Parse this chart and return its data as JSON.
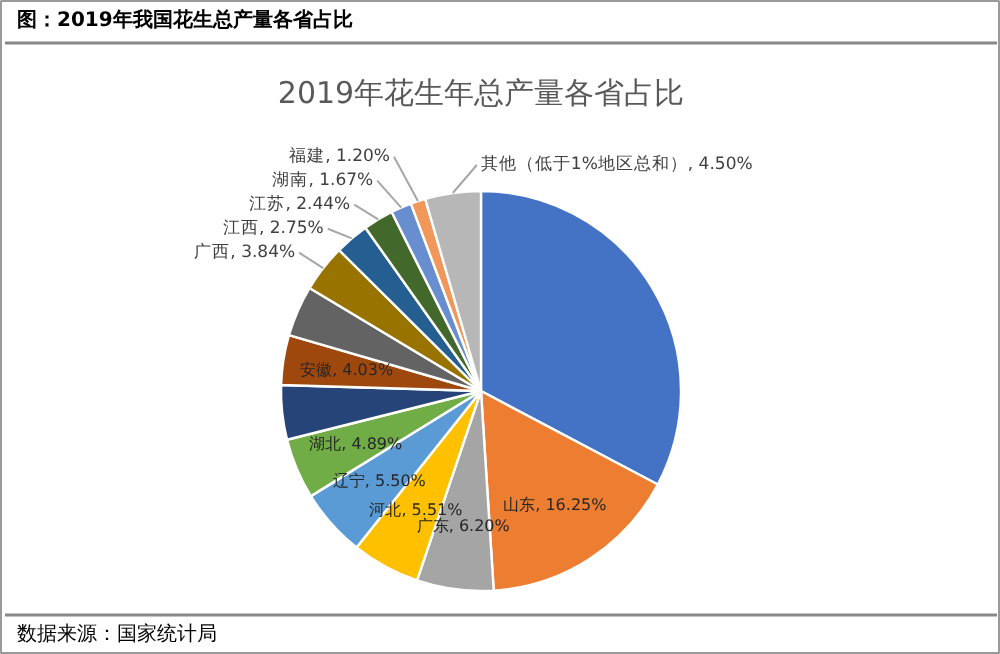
{
  "chart_data": {
    "type": "pie",
    "title": "图：2019年我国花生总产量各省占比",
    "subtitle": "2019年花生年总产量各省占比",
    "categories": [
      null,
      "山东",
      "广东",
      "河北",
      "辽宁",
      "湖北",
      null,
      "安徽",
      null,
      "广西",
      "江西",
      "江苏",
      "湖南",
      "福建",
      "其他（低于1%地区总和）"
    ],
    "values": [
      32.75,
      16.25,
      6.2,
      5.51,
      5.5,
      4.89,
      4.4,
      4.03,
      4.1,
      3.84,
      2.75,
      2.44,
      1.67,
      1.2,
      4.5
    ],
    "colors": [
      "#4472c4",
      "#ed7d31",
      "#a5a5a5",
      "#ffc000",
      "#5b9bd5",
      "#70ad47",
      "#264478",
      "#9e480e",
      "#636363",
      "#997300",
      "#255e91",
      "#43682b",
      "#698ed0",
      "#f1975a",
      "#b7b7b7"
    ],
    "value_labels": [
      null,
      "16.25%",
      "6.20%",
      "5.51%",
      "5.50%",
      "4.89%",
      null,
      "4.03%",
      null,
      "3.84%",
      "2.75%",
      "2.44%",
      "1.67%",
      "1.20%",
      "4.50%"
    ],
    "annotations": [
      "数据来源：国家统计局"
    ]
  }
}
